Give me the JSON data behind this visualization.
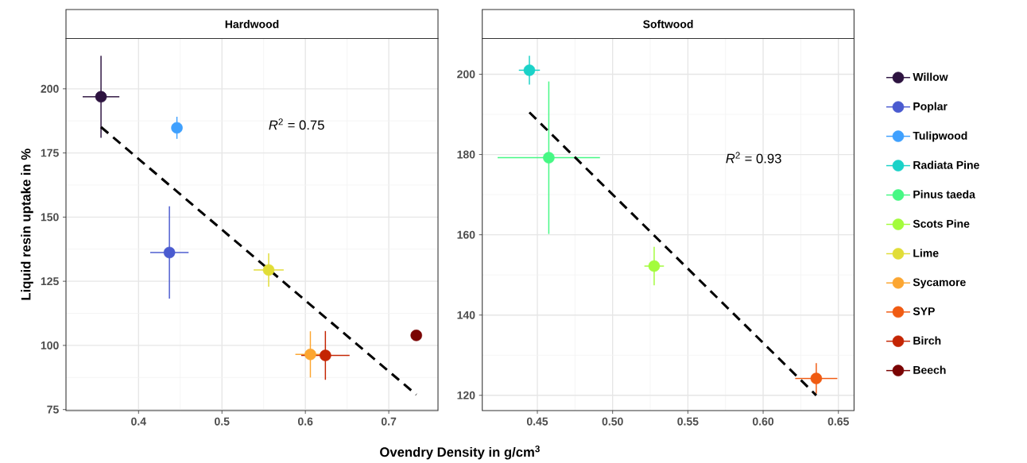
{
  "chart_data": [
    {
      "type": "scatter",
      "title": "Hardwood",
      "xlabel": "Ovendry Density in g/cm$^{3}$",
      "ylabel": "Liquid resin uptake in %",
      "xlim": [
        0.313,
        0.759
      ],
      "ylim": [
        74.6,
        219.6
      ],
      "xticks": [
        0.4,
        0.5,
        0.6,
        0.7
      ],
      "yticks": [
        75,
        100,
        125,
        150,
        175,
        200
      ],
      "grid": true,
      "legend": false,
      "annotations": [
        "*R*$^{2}$ = 0.75"
      ],
      "series": [
        {
          "color": "#2d1340",
          "marker": "circle",
          "x": [
            0.355
          ],
          "values": [
            196.9
          ],
          "errors": [
            16
          ],
          "xerrors": [
            0.022
          ]
        },
        {
          "color": "#4a5bd0",
          "marker": "circle",
          "x": [
            0.437
          ],
          "values": [
            136.2
          ],
          "errors": [
            18
          ],
          "xerrors": [
            0.023
          ]
        },
        {
          "color": "#3fa0fe",
          "marker": "circle",
          "x": [
            0.446
          ],
          "values": [
            184.8
          ],
          "errors": [
            4.3
          ],
          "xerrors": [
            null
          ]
        },
        {
          "color": "#e1dd37",
          "marker": "circle",
          "x": [
            0.556
          ],
          "values": [
            129.4
          ],
          "errors": [
            6.5
          ],
          "xerrors": [
            0.018
          ]
        },
        {
          "color": "#fca631",
          "marker": "circle",
          "x": [
            0.606
          ],
          "values": [
            96.5
          ],
          "errors": [
            9
          ],
          "xerrors": [
            0.018
          ]
        },
        {
          "color": "#c42503",
          "marker": "circle",
          "x": [
            0.624
          ],
          "values": [
            96.1
          ],
          "errors": [
            9.5
          ],
          "xerrors": [
            0.029
          ]
        },
        {
          "color": "#7a0403",
          "marker": "circle",
          "x": [
            0.733
          ],
          "values": [
            103.9
          ],
          "errors": [
            null
          ],
          "xerrors": [
            null
          ]
        },
        {
          "type": "line",
          "line_style": "dashed",
          "marker": "none",
          "color": "#000000",
          "x": [
            0.355,
            0.733
          ],
          "values": [
            185.1,
            80.8
          ]
        }
      ]
    },
    {
      "type": "scatter",
      "title": "Softwood",
      "xlim": [
        0.4134,
        0.6604
      ],
      "ylim": [
        116.2,
        208.9
      ],
      "xticks": [
        0.45,
        {
          "value": 0.5,
          "label": "0.50"
        },
        0.55,
        {
          "value": 0.6,
          "label": "0.60"
        },
        0.65
      ],
      "yticks": [
        120,
        140,
        160,
        180,
        200
      ],
      "grid": true,
      "legend": "right",
      "annotations": [
        "*R*$^{2}$ = 0.93"
      ],
      "series": [
        {
          "name": "Willow",
          "color": "#2d1340",
          "marker": "circle"
        },
        {
          "name": "Poplar",
          "color": "#4a5bd0",
          "marker": "circle"
        },
        {
          "name": "Tulipwood",
          "color": "#3fa0fe",
          "marker": "circle"
        },
        {
          "name": "Radiata Pine",
          "color": "#1ad2c8",
          "marker": "circle",
          "x": [
            0.4447
          ],
          "values": [
            201.0
          ],
          "errors": [
            3.6
          ],
          "xerrors": [
            0.007
          ]
        },
        {
          "name": "Pinus taeda",
          "color": "#46f884",
          "marker": "circle",
          "x": [
            0.4576
          ],
          "values": [
            179.2
          ],
          "errors": [
            19
          ],
          "xerrors": [
            0.034
          ]
        },
        {
          "name": "Scots Pine",
          "color": "#a3fc3c",
          "marker": "circle",
          "x": [
            0.5276
          ],
          "values": [
            152.2
          ],
          "errors": [
            4.8
          ],
          "xerrors": [
            0.0065
          ]
        },
        {
          "name": "Lime",
          "color": "#e1dd37",
          "marker": "circle"
        },
        {
          "name": "Sycamore",
          "color": "#fca631",
          "marker": "circle"
        },
        {
          "name": "SYP",
          "color": "#f05b12",
          "marker": "circle",
          "x": [
            0.6353
          ],
          "values": [
            124.2
          ],
          "errors": [
            3.8
          ],
          "xerrors": [
            0.014
          ]
        },
        {
          "name": "Birch",
          "color": "#c42503",
          "marker": "circle"
        },
        {
          "name": "Beech",
          "color": "#7a0403",
          "marker": "circle"
        },
        {
          "type": "line",
          "line_style": "dashed",
          "marker": "none",
          "color": "#000000",
          "x": [
            0.4447,
            0.6353
          ],
          "values": [
            190.5,
            120.0
          ]
        }
      ]
    }
  ]
}
